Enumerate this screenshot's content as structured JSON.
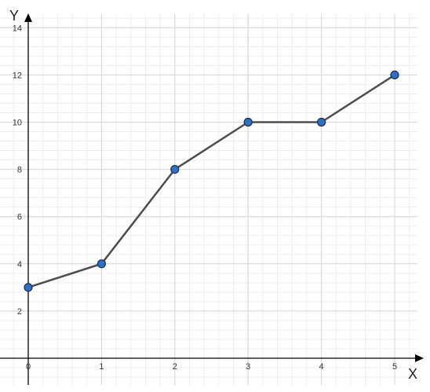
{
  "chart_data": {
    "type": "line",
    "x": [
      0,
      1,
      2,
      3,
      4,
      5
    ],
    "series": [
      {
        "values": [
          3,
          4,
          8,
          10,
          10,
          12
        ]
      }
    ],
    "xlabel": "X",
    "ylabel": "Y",
    "xlim": [
      0,
      5.2
    ],
    "ylim": [
      -1,
      14.4
    ],
    "x_ticks": [
      "0",
      "1",
      "2",
      "3",
      "4",
      "5"
    ],
    "y_ticks": [
      "2",
      "4",
      "6",
      "8",
      "10",
      "12",
      "14"
    ],
    "grid": true,
    "minor_grid": true,
    "colors": {
      "line": "#4d4d4d",
      "marker_fill": "#2f6fc4",
      "marker_stroke": "#1a2f4f",
      "major_grid": "#d6d6d6",
      "minor_grid": "#eeeeee",
      "axis": "#000000"
    }
  }
}
